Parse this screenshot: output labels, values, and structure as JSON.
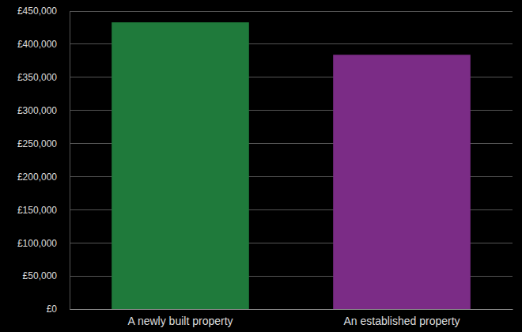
{
  "chart_data": {
    "type": "bar",
    "categories": [
      "A newly built property",
      "An established property"
    ],
    "values": [
      433000,
      384000
    ],
    "colors": [
      "#1f7a3b",
      "#7b2c86"
    ],
    "ylim": [
      0,
      450000
    ],
    "yticks": [
      {
        "value": 0,
        "label": "£0"
      },
      {
        "value": 50000,
        "label": "£50,000"
      },
      {
        "value": 100000,
        "label": "£100,000"
      },
      {
        "value": 150000,
        "label": "£150,000"
      },
      {
        "value": 200000,
        "label": "£200,000"
      },
      {
        "value": 250000,
        "label": "£250,000"
      },
      {
        "value": 300000,
        "label": "£300,000"
      },
      {
        "value": 350000,
        "label": "£350,000"
      },
      {
        "value": 400000,
        "label": "£400,000"
      },
      {
        "value": 450000,
        "label": "£450,000"
      }
    ],
    "grid": true
  }
}
